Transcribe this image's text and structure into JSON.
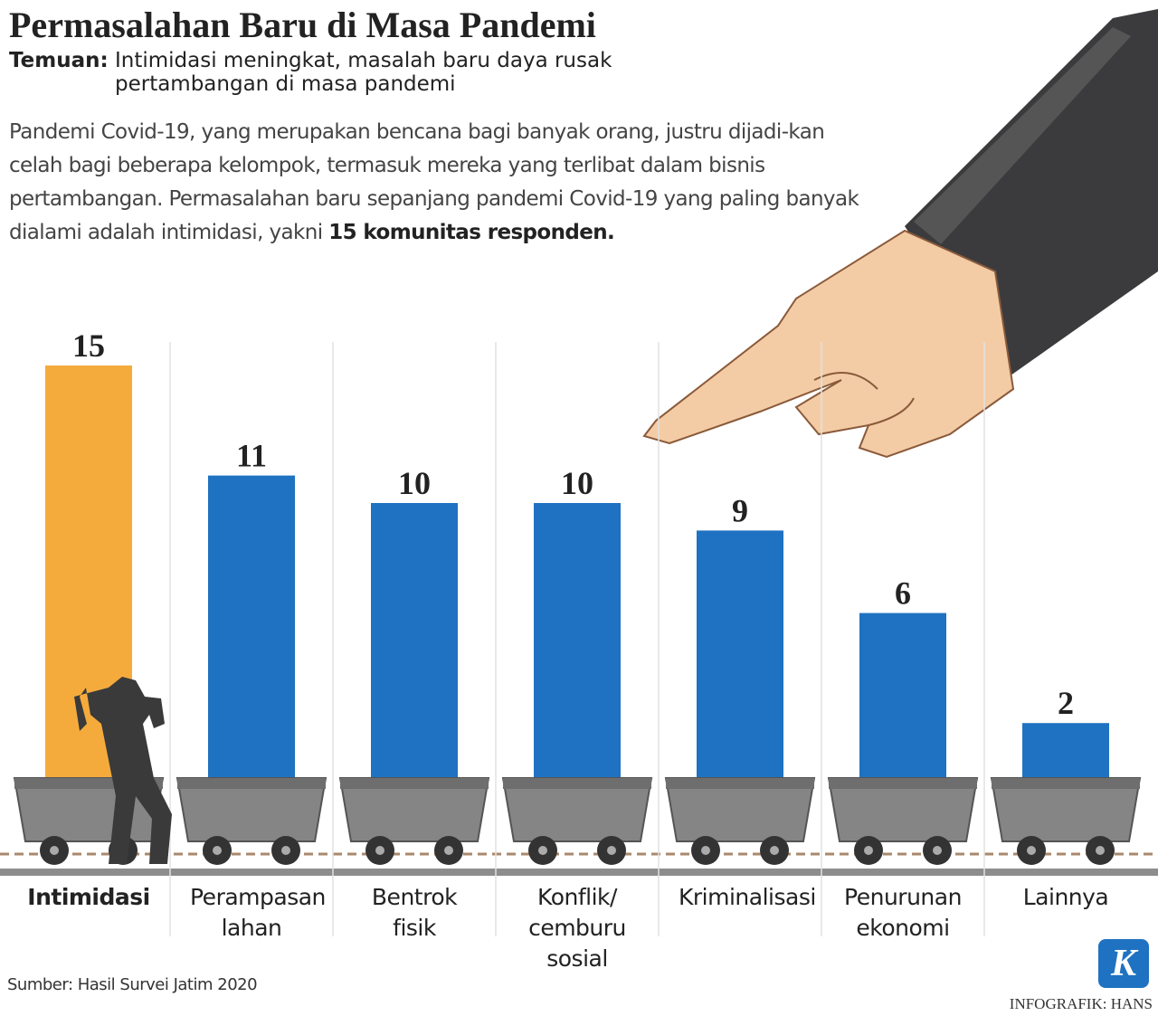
{
  "chart_data": {
    "type": "bar",
    "title": "Permasalahan Baru di Masa Pandemi",
    "subtitle_label": "Temuan:",
    "subtitle": "Intimidasi meningkat, masalah baru daya rusak pertambangan di masa pandemi",
    "description": "Pandemi Covid-19, yang merupakan bencana bagi banyak orang, justru dijadi-kan celah bagi beberapa kelompok, termasuk mereka yang terlibat dalam bisnis pertambangan. Permasalahan baru sepanjang pandemi Covid-19 yang paling banyak dialami adalah intimidasi, yakni",
    "description_highlight": "15 komunitas responden.",
    "categories": [
      "Intimidasi",
      "Perampasan lahan",
      "Bentrok fisik",
      "Konflik/ cemburu sosial",
      "Kriminalisasi",
      "Penurunan ekonomi",
      "Lainnya"
    ],
    "values": [
      15,
      11,
      10,
      10,
      9,
      6,
      2
    ],
    "colors": [
      "#f5ab3c",
      "#1f72c1",
      "#1f72c1",
      "#1f72c1",
      "#1f72c1",
      "#1f72c1",
      "#1f72c1"
    ],
    "source": "Sumber: Hasil Survei Jatim 2020",
    "credit": "INFOGRAFIK: HANS",
    "logo": "K"
  }
}
